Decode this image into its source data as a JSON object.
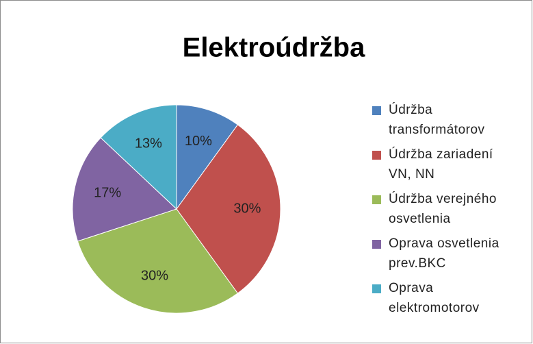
{
  "chart_data": {
    "type": "pie",
    "title": "Elektroúdržba",
    "categories": [
      "Údržba transformátorov",
      "Údržba zariadení VN, NN",
      "Údržba verejného osvetlenia",
      "Oprava osvetlenia prev.BKC",
      "Oprava elektromotorov"
    ],
    "values": [
      10,
      30,
      30,
      17,
      13
    ],
    "value_labels": [
      "10%",
      "30%",
      "30%",
      "17%",
      "13%"
    ],
    "colors": [
      "#4f81bd",
      "#c0504d",
      "#9bbb59",
      "#8064a2",
      "#4bacc6"
    ],
    "legend": "right"
  }
}
